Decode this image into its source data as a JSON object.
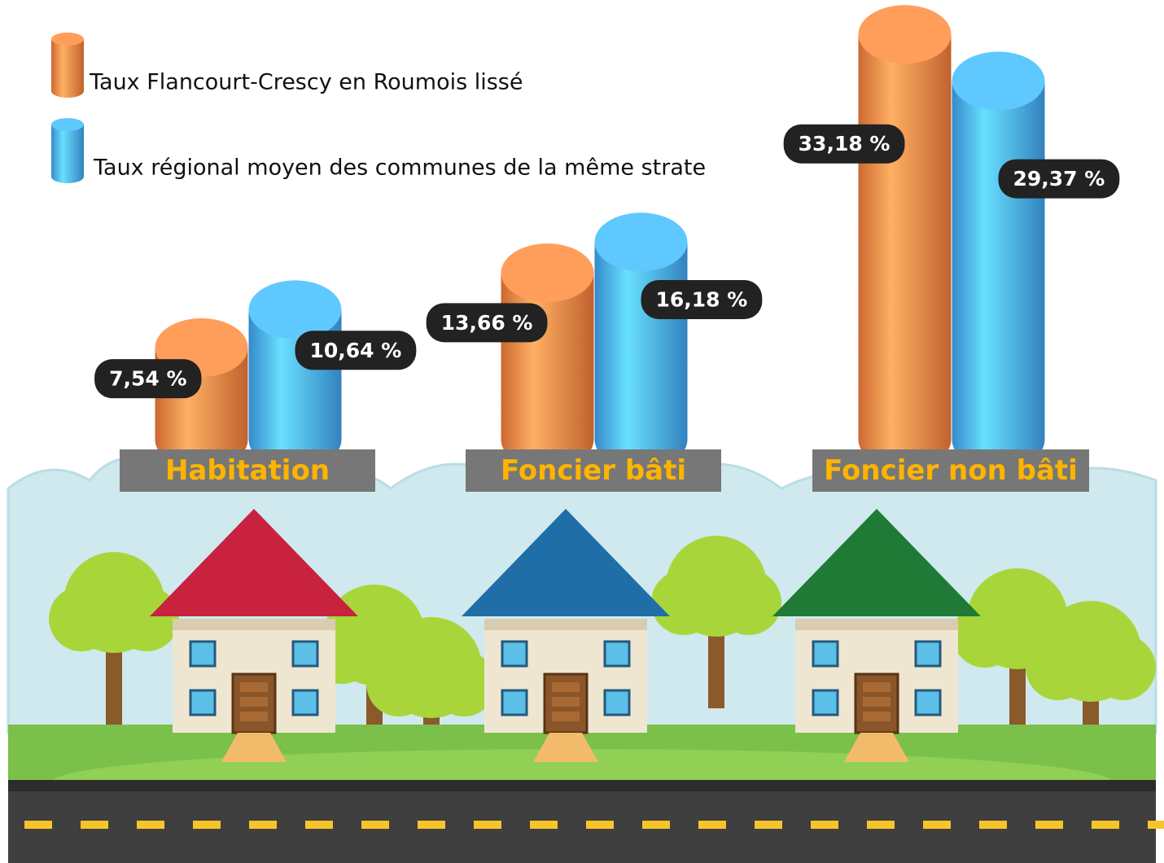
{
  "chart_data": {
    "type": "bar",
    "categories": [
      "Habitation",
      "Foncier bâti",
      "Foncier non bâti"
    ],
    "series": [
      {
        "name": "Taux Flancourt-Crescy en Roumois lissé",
        "color": "#f07a3a",
        "values": [
          7.54,
          13.66,
          33.18
        ],
        "value_labels": [
          "7,54 %",
          "13,66 %",
          "33,18 %"
        ]
      },
      {
        "name": "Taux régional moyen des communes de la même strate",
        "color": "#3ea2ee",
        "values": [
          10.64,
          16.18,
          29.37
        ],
        "value_labels": [
          "10,64 %",
          "16,18 %",
          "29,37 %"
        ]
      }
    ]
  }
}
